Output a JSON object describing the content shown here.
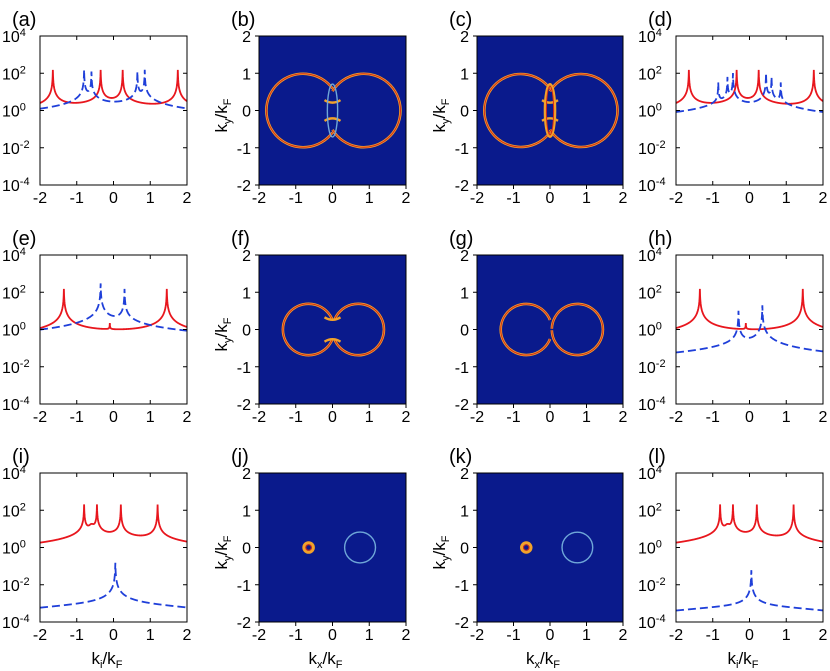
{
  "figure": {
    "panel_letters": [
      "(a)",
      "(b)",
      "(c)",
      "(d)",
      "(e)",
      "(f)",
      "(g)",
      "(h)",
      "(i)",
      "(j)",
      "(k)",
      "(l)"
    ]
  },
  "colors": {
    "red": "#e8161d",
    "blue": "#1f3fd9",
    "map_bg": "#0a1a8c",
    "ring_outer": "#f2a22a",
    "ring_inner": "#d42a1a",
    "ring_faint": "#6fa7d8"
  },
  "chart_data": [
    {
      "panel": "(a)",
      "type": "line",
      "yscale": "log",
      "xlim": [
        -2,
        2
      ],
      "ylim": [
        0.0001,
        10000
      ],
      "xticks": [
        "-2",
        "-1",
        "0",
        "1",
        "2"
      ],
      "yticks": [
        "10^-4",
        "10^-2",
        "10^0",
        "10^2",
        "10^4"
      ],
      "xlabel": "",
      "ylabel": "",
      "series": [
        {
          "color": "red",
          "style": "solid",
          "base": 0.04,
          "peaks": [
            [
              -1.65,
              150
            ],
            [
              -0.35,
              150
            ],
            [
              0.25,
              150
            ],
            [
              1.75,
              150
            ]
          ],
          "dip": []
        },
        {
          "color": "blue",
          "style": "dashed",
          "base": 0.02,
          "peaks": [
            [
              -0.8,
              150
            ],
            [
              -0.6,
              120
            ],
            [
              0.65,
              120
            ],
            [
              0.85,
              150
            ]
          ],
          "dip": []
        }
      ]
    },
    {
      "panel": "(b)",
      "type": "heatmap",
      "xlim": [
        -2,
        2
      ],
      "ylim": [
        -2,
        2
      ],
      "xticks": [
        "-2",
        "-1",
        "0",
        "1",
        "2"
      ],
      "yticks": [
        "-2",
        "-1",
        "0",
        "1",
        "2"
      ],
      "xlabel": "",
      "ylabel": "k_y/k_F",
      "shape": {
        "kind": "two_circles",
        "cx_left": -0.8,
        "cx_right": 0.85,
        "r": 1.0,
        "neck": 0.2,
        "inner_lens": true,
        "lens_color": "faint"
      }
    },
    {
      "panel": "(c)",
      "type": "heatmap",
      "xlim": [
        -2,
        2
      ],
      "ylim": [
        -2,
        2
      ],
      "xticks": [
        "-2",
        "-1",
        "0",
        "1",
        "2"
      ],
      "yticks": [
        "-2",
        "-1",
        "0",
        "1",
        "2"
      ],
      "xlabel": "",
      "ylabel": "k_y/k_F",
      "shape": {
        "kind": "two_circles",
        "cx_left": -0.8,
        "cx_right": 0.85,
        "r": 1.0,
        "neck": 0.2,
        "inner_lens": true,
        "lens_color": "bright"
      }
    },
    {
      "panel": "(d)",
      "type": "line",
      "yscale": "log",
      "xlim": [
        -2,
        2
      ],
      "ylim": [
        0.0001,
        10000
      ],
      "xticks": [
        "-2",
        "-1",
        "0",
        "1",
        "2"
      ],
      "yticks": [
        "10^-4",
        "10^-2",
        "10^0",
        "10^2",
        "10^4"
      ],
      "xlabel": "",
      "ylabel": "",
      "series": [
        {
          "color": "red",
          "style": "solid",
          "base": 0.04,
          "peaks": [
            [
              -1.65,
              150
            ],
            [
              -0.35,
              150
            ],
            [
              0.25,
              150
            ],
            [
              1.75,
              150
            ]
          ],
          "dip": []
        },
        {
          "color": "blue",
          "style": "dashed",
          "base": 0.0006,
          "peaks": [
            [
              -0.85,
              30
            ],
            [
              -0.6,
              60
            ],
            [
              -0.45,
              100
            ],
            [
              0.45,
              100
            ],
            [
              0.6,
              60
            ],
            [
              0.85,
              30
            ]
          ],
          "dip": []
        }
      ]
    },
    {
      "panel": "(e)",
      "type": "line",
      "yscale": "log",
      "xlim": [
        -2,
        2
      ],
      "ylim": [
        0.0001,
        10000
      ],
      "xticks": [
        "-2",
        "-1",
        "0",
        "1",
        "2"
      ],
      "yticks": [
        "10^-4",
        "10^-2",
        "10^0",
        "10^2",
        "10^4"
      ],
      "xlabel": "",
      "ylabel": "",
      "series": [
        {
          "color": "red",
          "style": "solid",
          "base": 0.1,
          "peaks": [
            [
              -1.35,
              150
            ],
            [
              -0.1,
              1.2
            ],
            [
              1.45,
              150
            ]
          ],
          "dip": []
        },
        {
          "color": "blue",
          "style": "dashed",
          "base": 0.001,
          "peaks": [
            [
              -0.35,
              300
            ],
            [
              0.3,
              150
            ]
          ],
          "dip": []
        }
      ]
    },
    {
      "panel": "(f)",
      "type": "heatmap",
      "xlim": [
        -2,
        2
      ],
      "ylim": [
        -2,
        2
      ],
      "xticks": [
        "-2",
        "-1",
        "0",
        "1",
        "2"
      ],
      "yticks": [
        "-2",
        "-1",
        "0",
        "1",
        "2"
      ],
      "xlabel": "",
      "ylabel": "k_y/k_F",
      "shape": {
        "kind": "two_circles",
        "cx_left": -0.65,
        "cx_right": 0.7,
        "r": 0.7,
        "neck": 0.25,
        "inner_lens": false,
        "lens_color": ""
      }
    },
    {
      "panel": "(g)",
      "type": "heatmap",
      "xlim": [
        -2,
        2
      ],
      "ylim": [
        -2,
        2
      ],
      "xticks": [
        "-2",
        "-1",
        "0",
        "1",
        "2"
      ],
      "yticks": [
        "-2",
        "-1",
        "0",
        "1",
        "2"
      ],
      "xlabel": "",
      "ylabel": "",
      "shape": {
        "kind": "two_circles",
        "cx_left": -0.65,
        "cx_right": 0.75,
        "r": 0.7,
        "neck": 0.02,
        "inner_lens": false,
        "lens_color": ""
      }
    },
    {
      "panel": "(h)",
      "type": "line",
      "yscale": "log",
      "xlim": [
        -2,
        2
      ],
      "ylim": [
        0.0001,
        10000
      ],
      "xticks": [
        "-2",
        "-1",
        "0",
        "1",
        "2"
      ],
      "yticks": [
        "10^-4",
        "10^-2",
        "10^0",
        "10^2",
        "10^4"
      ],
      "xlabel": "",
      "ylabel": "",
      "series": [
        {
          "color": "red",
          "style": "solid",
          "base": 0.1,
          "peaks": [
            [
              -1.35,
              150
            ],
            [
              -0.1,
              1.2
            ],
            [
              1.45,
              150
            ]
          ],
          "dip": []
        },
        {
          "color": "blue",
          "style": "dashed",
          "base": 0.001,
          "peaks": [
            [
              -0.3,
              10
            ],
            [
              0.35,
              20
            ]
          ],
          "dip": []
        }
      ]
    },
    {
      "panel": "(i)",
      "type": "line",
      "yscale": "log",
      "xlim": [
        -2,
        2
      ],
      "ylim": [
        0.0001,
        10000
      ],
      "xticks": [
        "-2",
        "-1",
        "0",
        "1",
        "2"
      ],
      "yticks": [
        "10^-4",
        "10^-2",
        "10^0",
        "10^2",
        "10^4"
      ],
      "xlabel": "k_i/k_F",
      "ylabel": "",
      "series": [
        {
          "color": "red",
          "style": "solid",
          "base": 0.01,
          "peaks": [
            [
              -0.8,
              200
            ],
            [
              -0.45,
              200
            ],
            [
              0.2,
              200
            ],
            [
              1.2,
              200
            ]
          ],
          "dip": [
            [
              -0.6,
              8
            ],
            [
              0.0,
              0.15
            ]
          ]
        },
        {
          "color": "blue",
          "style": "dashed",
          "base": 0.0003,
          "peaks": [
            [
              0.05,
              0.15
            ]
          ],
          "dip": []
        }
      ]
    },
    {
      "panel": "(j)",
      "type": "heatmap",
      "xlim": [
        -2,
        2
      ],
      "ylim": [
        -2,
        2
      ],
      "xticks": [
        "-2",
        "-1",
        "0",
        "1",
        "2"
      ],
      "yticks": [
        "-2",
        "-1",
        "0",
        "1",
        "2"
      ],
      "xlabel": "k_x/k_F",
      "ylabel": "k_y/k_F",
      "shape": {
        "kind": "separate_circles",
        "cx_left": -0.65,
        "r_left": 0.13,
        "cx_right": 0.75,
        "r_right": 0.42
      }
    },
    {
      "panel": "(k)",
      "type": "heatmap",
      "xlim": [
        -2,
        2
      ],
      "ylim": [
        -2,
        2
      ],
      "xticks": [
        "-2",
        "-1",
        "0",
        "1",
        "2"
      ],
      "yticks": [
        "-2",
        "-1",
        "0",
        "1",
        "2"
      ],
      "xlabel": "k_x/k_F",
      "ylabel": "k_y/k_F",
      "shape": {
        "kind": "separate_circles",
        "cx_left": -0.65,
        "r_left": 0.13,
        "cx_right": 0.75,
        "r_right": 0.42
      }
    },
    {
      "panel": "(l)",
      "type": "line",
      "yscale": "log",
      "xlim": [
        -2,
        2
      ],
      "ylim": [
        0.0001,
        10000
      ],
      "xticks": [
        "-2",
        "-1",
        "0",
        "1",
        "2"
      ],
      "yticks": [
        "10^-4",
        "10^-2",
        "10^0",
        "10^2",
        "10^4"
      ],
      "xlabel": "k_i/k_F",
      "ylabel": "",
      "series": [
        {
          "color": "red",
          "style": "solid",
          "base": 0.01,
          "peaks": [
            [
              -0.8,
              200
            ],
            [
              -0.45,
              200
            ],
            [
              0.2,
              200
            ],
            [
              1.2,
              200
            ]
          ],
          "dip": [
            [
              -0.6,
              8
            ],
            [
              0.0,
              0.15
            ]
          ]
        },
        {
          "color": "blue",
          "style": "dashed",
          "base": 0.0003,
          "peaks": [
            [
              0.05,
              0.06
            ]
          ],
          "dip": []
        }
      ]
    }
  ]
}
